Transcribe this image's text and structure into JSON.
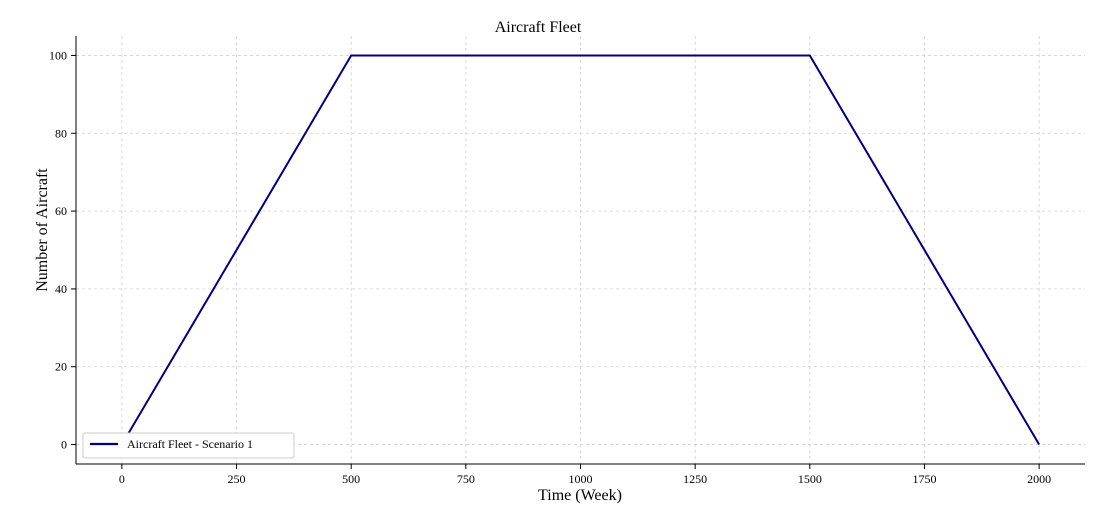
{
  "chart_data": {
    "type": "line",
    "title": "Aircraft Fleet",
    "xlabel": "Time (Week)",
    "ylabel": "Number of Aircraft",
    "xlim": [
      -100,
      2100
    ],
    "ylim": [
      -5,
      105
    ],
    "xticks": [
      0,
      250,
      500,
      750,
      1000,
      1250,
      1500,
      1750,
      2000
    ],
    "yticks": [
      0,
      20,
      40,
      60,
      80,
      100
    ],
    "grid": true,
    "legend_position": "lower-left",
    "series": [
      {
        "name": "Aircraft Fleet - Scenario 1",
        "color": "#00007f",
        "x": [
          0,
          500,
          1500,
          2000
        ],
        "y": [
          0,
          100,
          100,
          0
        ]
      }
    ]
  }
}
